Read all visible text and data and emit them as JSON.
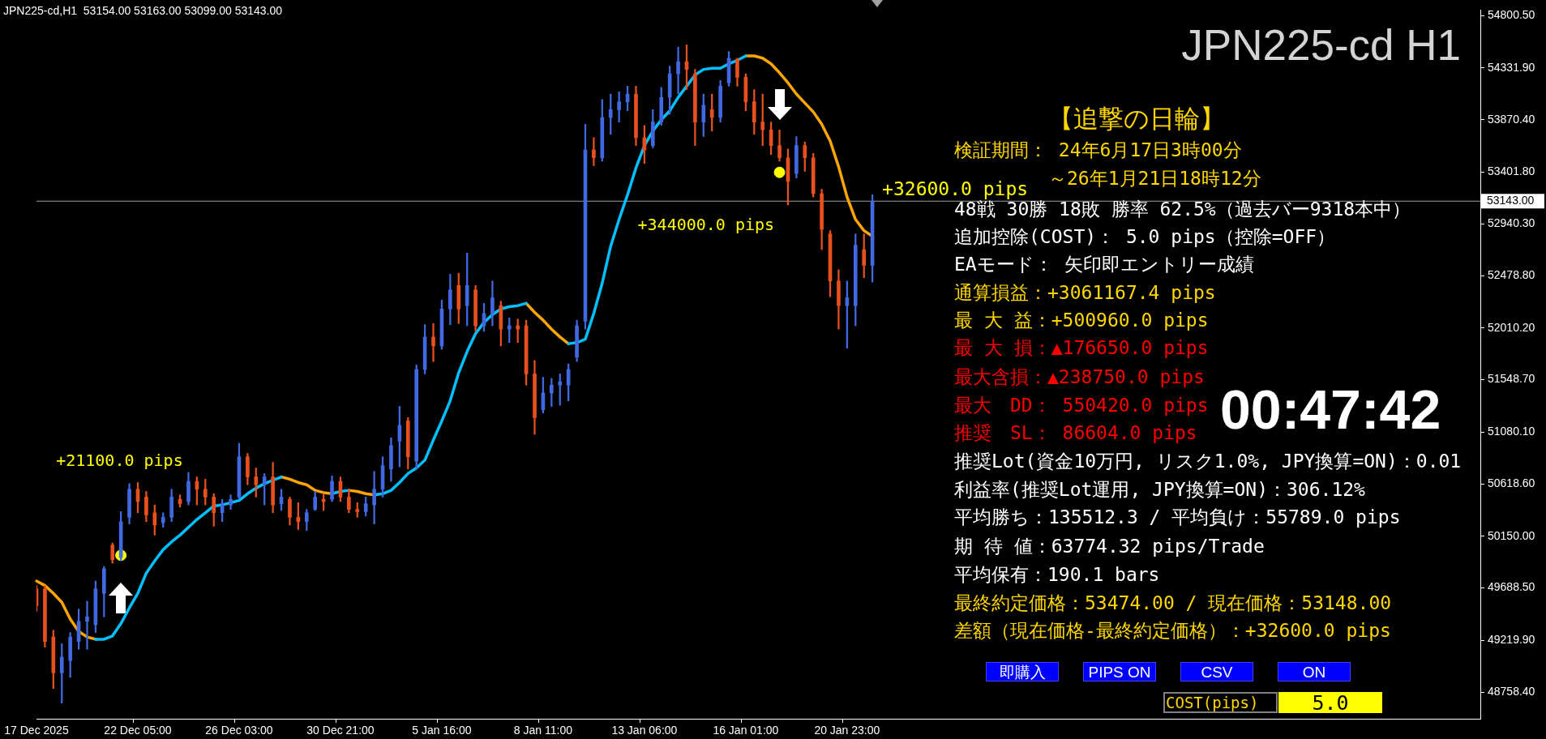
{
  "chart_data": {
    "type": "candlestick",
    "title": "JPN225-cd H1",
    "subtitle": "JPN225-cd,H1  53154.00 53163.00 53099.00 53143.00",
    "categories": [
      "17 Dec 2025",
      null,
      null,
      null,
      null,
      null,
      null,
      null,
      null,
      null,
      null,
      null,
      "22 Dec 05:00",
      null,
      null,
      null,
      null,
      null,
      null,
      null,
      null,
      null,
      null,
      null,
      "26 Dec 03:00",
      null,
      null,
      null,
      null,
      null,
      null,
      null,
      null,
      null,
      null,
      null,
      "30 Dec 21:00",
      null,
      null,
      null,
      null,
      null,
      null,
      null,
      null,
      null,
      null,
      null,
      "5 Jan 16:00",
      null,
      null,
      null,
      null,
      null,
      null,
      null,
      null,
      null,
      null,
      null,
      "8 Jan 11:00",
      null,
      null,
      null,
      null,
      null,
      null,
      null,
      null,
      null,
      null,
      null,
      "13 Jan 06:00",
      null,
      null,
      null,
      null,
      null,
      null,
      null,
      null,
      null,
      null,
      null,
      "16 Jan 01:00",
      null,
      null,
      null,
      null,
      null,
      null,
      null,
      null,
      null,
      null,
      null,
      "20 Jan 23:00",
      null,
      null,
      null,
      null,
      null,
      null,
      null,
      null,
      null,
      null,
      null,
      null,
      null,
      null,
      null,
      null,
      null,
      null,
      null,
      null,
      null,
      null,
      null,
      null,
      null,
      null,
      null,
      null,
      null,
      null,
      null,
      null,
      null,
      null,
      null,
      null,
      null,
      null,
      null,
      null,
      null,
      null,
      null,
      null,
      null,
      null,
      null,
      null,
      null,
      null,
      null,
      null,
      null,
      null,
      null,
      null,
      null,
      null,
      null,
      null,
      null,
      null,
      null,
      null,
      null,
      null,
      null,
      null,
      null,
      null,
      null,
      null,
      null,
      null,
      null
    ],
    "ohlc": [
      [
        49680,
        49710,
        49480,
        49530
      ],
      [
        49680,
        49710,
        49160,
        49210
      ],
      [
        49250,
        49310,
        48790,
        48930
      ],
      [
        48930,
        49190,
        48660,
        49070
      ],
      [
        49040,
        49290,
        48890,
        49250
      ],
      [
        49210,
        49500,
        49140,
        49390
      ],
      [
        49390,
        49570,
        49140,
        49430
      ],
      [
        49360,
        49750,
        49290,
        49680
      ],
      [
        49640,
        49880,
        49430,
        49860
      ],
      [
        50070,
        50090,
        49910,
        49940
      ],
      [
        49960,
        50370,
        49930,
        50280
      ],
      [
        50320,
        50620,
        50260,
        50570
      ],
      [
        50570,
        50630,
        50360,
        50460
      ],
      [
        50500,
        50550,
        50280,
        50340
      ],
      [
        50360,
        50430,
        50160,
        50250
      ],
      [
        50270,
        50360,
        50230,
        50320
      ],
      [
        50320,
        50570,
        50280,
        50500
      ],
      [
        50480,
        50520,
        50410,
        50440
      ],
      [
        50460,
        50720,
        50430,
        50640
      ],
      [
        50640,
        50680,
        50430,
        50570
      ],
      [
        50570,
        50660,
        50430,
        50500
      ],
      [
        50500,
        50530,
        50240,
        50360
      ],
      [
        50360,
        50480,
        50280,
        50430
      ],
      [
        50430,
        50520,
        50390,
        50480
      ],
      [
        50500,
        50980,
        50480,
        50860
      ],
      [
        50860,
        50890,
        50610,
        50680
      ],
      [
        50680,
        50760,
        50500,
        50610
      ],
      [
        50610,
        50710,
        50430,
        50680
      ],
      [
        50680,
        50810,
        50360,
        50430
      ],
      [
        50440,
        50570,
        50380,
        50500
      ],
      [
        50480,
        50500,
        50250,
        50320
      ],
      [
        50320,
        50450,
        50210,
        50280
      ],
      [
        50280,
        50390,
        50200,
        50360
      ],
      [
        50390,
        50550,
        50380,
        50500
      ],
      [
        50480,
        50530,
        50380,
        50460
      ],
      [
        50480,
        50690,
        50460,
        50640
      ],
      [
        50640,
        50680,
        50460,
        50500
      ],
      [
        50500,
        50570,
        50360,
        50390
      ],
      [
        50390,
        50450,
        50320,
        50370
      ],
      [
        50370,
        50500,
        50330,
        50440
      ],
      [
        50430,
        50730,
        50260,
        50570
      ],
      [
        50570,
        50860,
        50500,
        50780
      ],
      [
        50750,
        51030,
        50640,
        50960
      ],
      [
        51000,
        51310,
        50770,
        51140
      ],
      [
        51180,
        51210,
        50750,
        50860
      ],
      [
        50820,
        51680,
        50750,
        51640
      ],
      [
        51640,
        52040,
        51600,
        51930
      ],
      [
        51930,
        52050,
        51710,
        51850
      ],
      [
        51850,
        52260,
        51820,
        52180
      ],
      [
        52180,
        52490,
        52040,
        52350
      ],
      [
        52390,
        52500,
        52050,
        52180
      ],
      [
        52210,
        52680,
        52030,
        52390
      ],
      [
        52350,
        52390,
        51980,
        52030
      ],
      [
        52030,
        52230,
        51980,
        52140
      ],
      [
        52140,
        52430,
        52030,
        52280
      ],
      [
        52210,
        52250,
        51850,
        52000
      ],
      [
        52000,
        52100,
        51880,
        52030
      ],
      [
        52030,
        52090,
        51880,
        52000
      ],
      [
        52030,
        52080,
        51500,
        51600
      ],
      [
        51600,
        51720,
        51060,
        51210
      ],
      [
        51280,
        51570,
        51250,
        51430
      ],
      [
        51430,
        51560,
        51310,
        51500
      ],
      [
        51500,
        51600,
        51320,
        51530
      ],
      [
        51500,
        51690,
        51360,
        51640
      ],
      [
        51750,
        52080,
        51710,
        52030
      ],
      [
        52070,
        53830,
        52000,
        53600
      ],
      [
        53600,
        53710,
        53460,
        53530
      ],
      [
        53530,
        54050,
        53500,
        53890
      ],
      [
        53890,
        54100,
        53740,
        53960
      ],
      [
        53960,
        54120,
        53850,
        54030
      ],
      [
        54030,
        54170,
        53950,
        54100
      ],
      [
        54100,
        54170,
        53640,
        53710
      ],
      [
        53710,
        53820,
        53480,
        53600
      ],
      [
        53640,
        53960,
        53620,
        53850
      ],
      [
        53850,
        54160,
        53820,
        54070
      ],
      [
        54070,
        54350,
        53920,
        54280
      ],
      [
        54280,
        54520,
        54100,
        54390
      ],
      [
        54390,
        54540,
        54140,
        54320
      ],
      [
        54280,
        54320,
        53640,
        53850
      ],
      [
        53850,
        54100,
        53720,
        54000
      ],
      [
        53960,
        54100,
        53770,
        53890
      ],
      [
        53890,
        54220,
        53850,
        54170
      ],
      [
        54200,
        54480,
        54170,
        54420
      ],
      [
        54410,
        54420,
        54170,
        54250
      ],
      [
        54250,
        54280,
        53950,
        54030
      ],
      [
        54030,
        54140,
        53740,
        53850
      ],
      [
        53850,
        54100,
        53640,
        53780
      ],
      [
        53780,
        53850,
        53560,
        53640
      ],
      [
        53640,
        53780,
        53500,
        53530
      ],
      [
        53530,
        53610,
        53110,
        53320
      ],
      [
        53390,
        53720,
        53350,
        53640
      ],
      [
        53640,
        53670,
        53410,
        53530
      ],
      [
        53530,
        53570,
        53180,
        53210
      ],
      [
        53210,
        53250,
        52710,
        52890
      ],
      [
        52850,
        52880,
        52290,
        52430
      ],
      [
        52430,
        52530,
        52000,
        52210
      ],
      [
        52210,
        52430,
        51830,
        52280
      ],
      [
        52210,
        52850,
        52030,
        52750
      ],
      [
        52710,
        52850,
        52460,
        52570
      ],
      [
        52570,
        53200,
        52420,
        53140
      ],
      null,
      null,
      null,
      null,
      null,
      null,
      null,
      null,
      null,
      null,
      null,
      null,
      null,
      null,
      null,
      null,
      null,
      null,
      null,
      null,
      null,
      null,
      null,
      null,
      null,
      null,
      null,
      null,
      null,
      null,
      null,
      null,
      null,
      null,
      null,
      null,
      null,
      null,
      null,
      null,
      null,
      null,
      null,
      null,
      null,
      null,
      null,
      null,
      null,
      null,
      null,
      null,
      null,
      null,
      null,
      null,
      null,
      null,
      null,
      null,
      null,
      null,
      null,
      null,
      null,
      null,
      null,
      null,
      null,
      null,
      null,
      null
    ],
    "colors": [
      "#e8501e",
      "#e8501e",
      "#e8501e",
      "#4169e1",
      "#4169e1",
      "#4169e1",
      "#4169e1",
      "#4169e1",
      "#4169e1",
      "#e8501e",
      "#4169e1",
      "#4169e1",
      "#e8501e",
      "#e8501e",
      "#e8501e",
      "#4169e1",
      "#4169e1",
      "#e8501e",
      "#4169e1",
      "#e8501e",
      "#e8501e",
      "#e8501e",
      "#4169e1",
      "#4169e1",
      "#4169e1",
      "#e8501e",
      "#e8501e",
      "#4169e1",
      "#e8501e",
      "#4169e1",
      "#e8501e",
      "#e8501e",
      "#4169e1",
      "#4169e1",
      "#e8501e",
      "#4169e1",
      "#e8501e",
      "#e8501e",
      "#e8501e",
      "#4169e1",
      "#4169e1",
      "#4169e1",
      "#4169e1",
      "#4169e1",
      "#e8501e",
      "#4169e1",
      "#4169e1",
      "#e8501e",
      "#4169e1",
      "#4169e1",
      "#e8501e",
      "#4169e1",
      "#e8501e",
      "#4169e1",
      "#4169e1",
      "#e8501e",
      "#4169e1",
      "#e8501e",
      "#e8501e",
      "#e8501e",
      "#4169e1",
      "#4169e1",
      "#4169e1",
      "#4169e1",
      "#4169e1",
      "#4169e1",
      "#e8501e",
      "#4169e1",
      "#4169e1",
      "#4169e1",
      "#4169e1",
      "#e8501e",
      "#e8501e",
      "#4169e1",
      "#4169e1",
      "#4169e1",
      "#4169e1",
      "#e8501e",
      "#e8501e",
      "#4169e1",
      "#e8501e",
      "#4169e1",
      "#4169e1",
      "#e8501e",
      "#e8501e",
      "#e8501e",
      "#e8501e",
      "#e8501e",
      "#e8501e",
      "#e8501e",
      "#4169e1",
      "#e8501e",
      "#e8501e",
      "#e8501e",
      "#e8501e",
      "#e8501e",
      "#4169e1",
      "#4169e1",
      "#e8501e",
      "#4169e1",
      null,
      null,
      null,
      null,
      null,
      null,
      null,
      null,
      null,
      null,
      null,
      null,
      null,
      null,
      null,
      null,
      null,
      null,
      null,
      null,
      null,
      null,
      null,
      null,
      null,
      null,
      null,
      null,
      null,
      null,
      null,
      null,
      null,
      null,
      null,
      null,
      null,
      null,
      null,
      null,
      null,
      null,
      null,
      null,
      null,
      null,
      null,
      null,
      null,
      null,
      null,
      null,
      null,
      null,
      null,
      null,
      null,
      null,
      null,
      null,
      null,
      null,
      null,
      null,
      null,
      null,
      null,
      null,
      null,
      null,
      null,
      null
    ],
    "series": [
      {
        "type": "line",
        "color": "#00bfff",
        "values": [
          null,
          null,
          null,
          null,
          null,
          null,
          null,
          49230,
          49230,
          49260,
          49370,
          49510,
          49640,
          49820,
          49930,
          50030,
          50100,
          50160,
          50230,
          50300,
          50360,
          50420,
          50430,
          50450,
          50470,
          50530,
          50580,
          50620,
          50650,
          50680,
          null,
          null,
          null,
          null,
          null,
          50530,
          50550,
          50560,
          null,
          null,
          50520,
          50530,
          50560,
          50630,
          50710,
          50760,
          50830,
          51010,
          51180,
          51360,
          51610,
          51800,
          51960,
          52060,
          52130,
          52180,
          52200,
          52210,
          52230,
          null,
          null,
          null,
          null,
          51870,
          51880,
          51910,
          52140,
          52410,
          52740,
          52980,
          53200,
          53440,
          53640,
          53770,
          53870,
          53950,
          54070,
          54170,
          54270,
          54320,
          54330,
          54330,
          54370,
          54400,
          54440,
          null,
          null,
          null,
          null,
          null,
          null,
          null,
          null,
          null,
          null,
          null,
          null,
          null,
          null,
          null,
          null,
          null,
          null,
          null,
          null,
          null,
          null,
          null,
          null,
          null,
          null,
          null,
          null,
          null,
          null,
          null,
          null,
          null,
          null,
          null,
          null,
          null,
          null,
          null,
          null,
          null,
          null,
          null,
          null,
          null,
          null,
          null,
          null,
          null,
          null,
          null,
          null,
          null,
          null,
          null,
          null,
          null,
          null,
          null,
          null,
          null,
          null,
          null,
          null,
          null,
          null,
          null,
          null,
          null,
          null,
          null,
          null,
          null,
          null,
          null,
          null,
          null,
          null,
          null,
          null,
          null,
          null,
          null,
          null,
          null,
          null,
          null
        ]
      },
      {
        "type": "line",
        "color": "#ffa500",
        "values": [
          49750,
          49710,
          49640,
          49560,
          49410,
          49300,
          49250,
          49230,
          null,
          null,
          null,
          null,
          null,
          null,
          null,
          null,
          null,
          null,
          null,
          null,
          null,
          null,
          null,
          null,
          null,
          null,
          null,
          null,
          null,
          50680,
          50660,
          50630,
          50610,
          50560,
          50540,
          50530,
          null,
          50560,
          50550,
          50530,
          50520,
          null,
          null,
          null,
          null,
          null,
          null,
          null,
          null,
          null,
          null,
          null,
          null,
          null,
          null,
          null,
          null,
          null,
          52230,
          52150,
          52080,
          52000,
          51930,
          51870,
          null,
          null,
          null,
          null,
          null,
          null,
          null,
          null,
          null,
          null,
          null,
          null,
          null,
          null,
          null,
          null,
          null,
          null,
          null,
          null,
          54440,
          54440,
          54420,
          54370,
          54290,
          54200,
          54100,
          54020,
          53940,
          53830,
          53680,
          53450,
          53180,
          52980,
          52880,
          52830,
          null,
          null,
          null,
          null,
          null,
          null,
          null,
          null,
          null,
          null,
          null,
          null,
          null,
          null,
          null,
          null,
          null,
          null,
          null,
          null,
          null,
          null,
          null,
          null,
          null,
          null,
          null,
          null,
          null,
          null,
          null,
          null,
          null,
          null,
          null,
          null,
          null,
          null,
          null,
          null,
          null,
          null,
          null,
          null,
          null,
          null,
          null,
          null,
          null,
          null,
          null,
          null,
          null,
          null,
          null,
          null,
          null,
          null,
          null,
          null,
          null,
          null,
          null,
          null,
          null,
          null,
          null,
          null,
          null,
          null,
          null,
          null
        ]
      },
      {
        "type": "scatter",
        "color": "#ffff00",
        "marker": "circle",
        "values": [
          null,
          null,
          null,
          null,
          null,
          null,
          null,
          null,
          null,
          null,
          49980,
          null,
          null,
          null,
          null,
          null,
          null,
          null,
          null,
          null,
          null,
          null,
          null,
          null,
          null,
          null,
          null,
          null,
          null,
          null,
          null,
          null,
          null,
          null,
          null,
          null,
          null,
          null,
          null,
          null,
          null,
          null,
          null,
          null,
          null,
          null,
          null,
          null,
          null,
          null,
          null,
          null,
          null,
          null,
          null,
          null,
          null,
          null,
          null,
          null,
          null,
          null,
          null,
          null,
          null,
          null,
          null,
          null,
          null,
          null,
          null,
          null,
          null,
          null,
          null,
          null,
          null,
          null,
          null,
          null,
          null,
          null,
          null,
          null,
          null,
          null,
          null,
          null,
          53400,
          null,
          null,
          null,
          null,
          null,
          null,
          null,
          null,
          null,
          null,
          null,
          null,
          null,
          null,
          null,
          null,
          null,
          null,
          null,
          null,
          null,
          null,
          null,
          null,
          null,
          null,
          null,
          null,
          null,
          null,
          null,
          null,
          null,
          null,
          null,
          null,
          null,
          null,
          null,
          null,
          null,
          null,
          null,
          null,
          null,
          null,
          null,
          null,
          null,
          null,
          null,
          null,
          null,
          null,
          null,
          null,
          null,
          null,
          null,
          null,
          null,
          null,
          null,
          null,
          null,
          null,
          null,
          null,
          null,
          null,
          null,
          null,
          null,
          null,
          null,
          null,
          null,
          null,
          null,
          null,
          null,
          null,
          null
        ]
      }
    ],
    "ylim": [
      48520,
      54850
    ],
    "yticks": [
      {
        "value": 48758.4,
        "label": "48758.40"
      },
      {
        "value": 49219.9,
        "label": "49219.90"
      },
      {
        "value": 49688.5,
        "label": "49688.50"
      },
      {
        "value": 50150,
        "label": "50150.00"
      },
      {
        "value": 50618.6,
        "label": "50618.60"
      },
      {
        "value": 51080.1,
        "label": "51080.10"
      },
      {
        "value": 51548.7,
        "label": "51548.70"
      },
      {
        "value": 52010.2,
        "label": "52010.20"
      },
      {
        "value": 52478.8,
        "label": "52478.80"
      },
      {
        "value": 52940.3,
        "label": "52940.30"
      },
      {
        "value": 53401.8,
        "label": "53401.80"
      },
      {
        "value": 53870.4,
        "label": "53870.40"
      },
      {
        "value": 54331.9,
        "label": "54331.90"
      },
      {
        "value": 54800.5,
        "label": "54800.50"
      }
    ],
    "ref_lines": [
      {
        "axis": "y",
        "value": 53143,
        "label": "53143.00",
        "color": "#a0a0a0"
      }
    ],
    "annotations": [
      "+21100.0 pips",
      "+344000.0 pips",
      "+32600.0 pips",
      "【追撃の日輪】",
      "検証期間： 24年6月17日3時00分",
      "～26年1月21日18時12分",
      "48戦 30勝 18敗 勝率 62.5%（過去バー9318本中）",
      "追加控除(COST)： 5.0 pips（控除=OFF）",
      "EAモード： 矢印即エントリー成績",
      "通算損益：+3061167.4 pips",
      "最 大 益：+500960.0 pips",
      "最 大 損：▲176650.0 pips",
      "最大含損：▲238750.0 pips",
      "最大　DD： 550420.0 pips",
      "推奨　SL： 86604.0 pips",
      "推奨Lot(資金10万円, リスク1.0%, JPY換算=ON)：0.01",
      "利益率(推奨Lot運用, JPY換算=ON)：306.12%",
      "平均勝ち：135512.3 / 平均負け：55789.0 pips",
      "期 待 値：63774.32 pips/Trade",
      "平均保有：190.1 bars",
      "最終約定価格：53474.00 / 現在価格：53148.00",
      "差額（現在価格-最終約定価格）：+32600.0 pips",
      "00:47:42",
      "即購入",
      "PIPS ON",
      "CSV",
      "ON",
      "COST(pips)",
      "5.0"
    ]
  }
}
